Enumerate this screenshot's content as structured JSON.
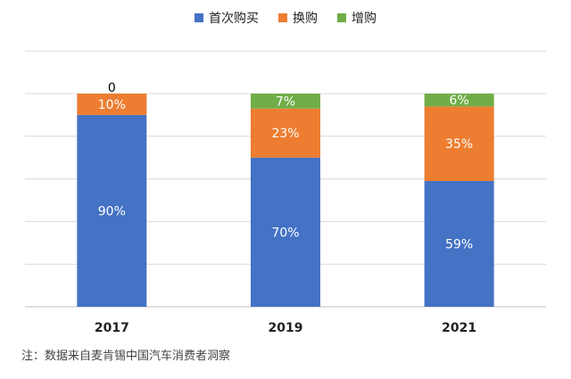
{
  "chart_data": {
    "type": "bar",
    "stacked": true,
    "categories": [
      "2017",
      "2019",
      "2021"
    ],
    "series": [
      {
        "name": "首次购买",
        "values": [
          90,
          70,
          59
        ],
        "labels": [
          "90%",
          "70%",
          "59%"
        ],
        "color": "#4472c4"
      },
      {
        "name": "换购",
        "values": [
          10,
          23,
          35
        ],
        "labels": [
          "10%",
          "23%",
          "35%"
        ],
        "color": "#ed7d31"
      },
      {
        "name": "增购",
        "values": [
          0,
          7,
          6
        ],
        "labels": [
          "0",
          "7%",
          "6%"
        ],
        "color": "#70ad47"
      }
    ],
    "ylim": [
      0,
      100
    ],
    "grid": true,
    "legend_position": "top-center",
    "note": "注：数据来自麦肯锡中国汽车消费者洞察"
  }
}
